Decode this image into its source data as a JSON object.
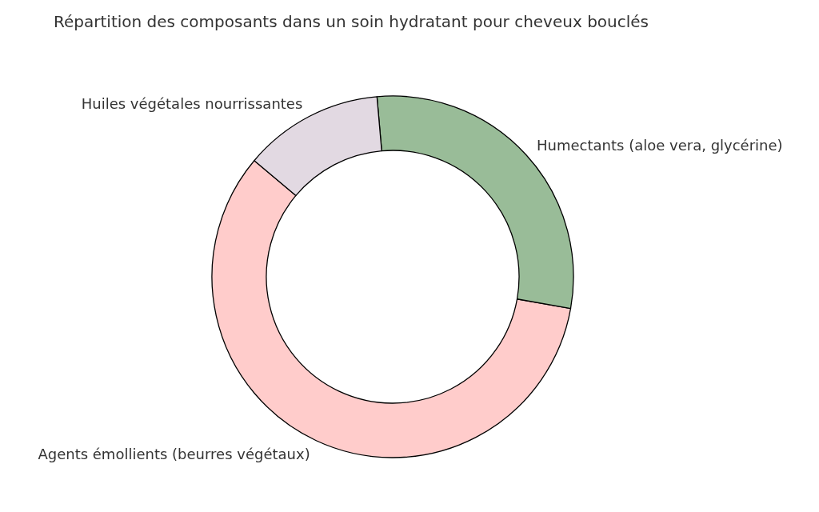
{
  "chart_data": {
    "type": "donut",
    "title": "Répartition des composants dans un soin hydratant pour cheveux bouclés",
    "categories": [
      "Agents émollients (beurres végétaux)",
      "Humectants (aloe vera, glycérine)",
      "Huiles végétales nourrissantes"
    ],
    "values": [
      58.3,
      29.2,
      12.5
    ],
    "colors": [
      "#ffcccb",
      "#99bc98",
      "#e2d9e2"
    ],
    "legend": false
  }
}
